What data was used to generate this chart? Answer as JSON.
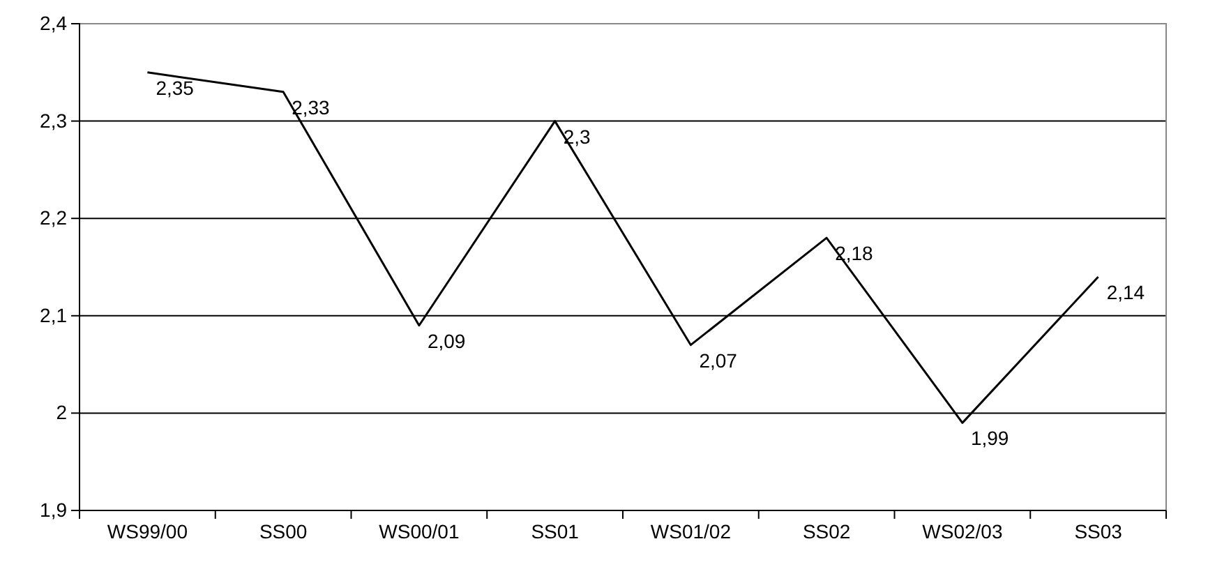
{
  "chart_data": {
    "type": "line",
    "categories": [
      "WS99/00",
      "SS00",
      "WS00/01",
      "SS01",
      "WS01/02",
      "SS02",
      "WS02/03",
      "SS03"
    ],
    "series": [
      {
        "color": "#000000",
        "values": [
          2.35,
          2.33,
          2.09,
          2.3,
          2.07,
          2.18,
          1.99,
          2.14
        ],
        "value_labels": [
          "2,35",
          "2,33",
          "2,09",
          "2,3",
          "2,07",
          "2,18",
          "1,99",
          "2,14"
        ]
      }
    ],
    "ylim": [
      1.9,
      2.4
    ],
    "yticks": [
      {
        "value": 1.9,
        "label": "1,9"
      },
      {
        "value": 2,
        "label": "2"
      },
      {
        "value": 2.1,
        "label": "2,1"
      },
      {
        "value": 2.2,
        "label": "2,2"
      },
      {
        "value": 2.3,
        "label": "2,3"
      },
      {
        "value": 2.4,
        "label": "2,4"
      }
    ],
    "grid": "y",
    "marker": "none",
    "line_style": "solid"
  }
}
